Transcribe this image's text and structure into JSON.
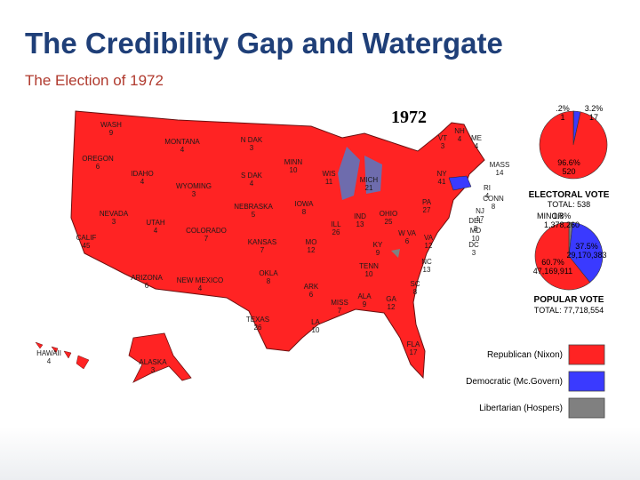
{
  "slide": {
    "title": "The Credibility Gap and Watergate",
    "subtitle": "The Election of 1972"
  },
  "map": {
    "year": "1972",
    "states": [
      {
        "name": "WASH",
        "votes": 9
      },
      {
        "name": "OREGON",
        "votes": 6
      },
      {
        "name": "CALIF",
        "votes": 45
      },
      {
        "name": "IDAHO",
        "votes": 4
      },
      {
        "name": "NEVADA",
        "votes": 3
      },
      {
        "name": "MONTANA",
        "votes": 4
      },
      {
        "name": "WYOMING",
        "votes": 3
      },
      {
        "name": "UTAH",
        "votes": 4
      },
      {
        "name": "ARIZONA",
        "votes": 6
      },
      {
        "name": "COLORADO",
        "votes": 7
      },
      {
        "name": "NEW MEXICO",
        "votes": 4
      },
      {
        "name": "N DAK",
        "votes": 3
      },
      {
        "name": "S DAK",
        "votes": 4
      },
      {
        "name": "NEBRASKA",
        "votes": 5
      },
      {
        "name": "KANSAS",
        "votes": 7
      },
      {
        "name": "OKLA",
        "votes": 8
      },
      {
        "name": "TEXAS",
        "votes": 26
      },
      {
        "name": "MINN",
        "votes": 10
      },
      {
        "name": "IOWA",
        "votes": 8
      },
      {
        "name": "MO",
        "votes": 12
      },
      {
        "name": "ARK",
        "votes": 6
      },
      {
        "name": "LA",
        "votes": 10
      },
      {
        "name": "WIS",
        "votes": 11
      },
      {
        "name": "ILL",
        "votes": 26
      },
      {
        "name": "MISS",
        "votes": 7
      },
      {
        "name": "MICH",
        "votes": 21
      },
      {
        "name": "IND",
        "votes": 13
      },
      {
        "name": "KY",
        "votes": 9
      },
      {
        "name": "TENN",
        "votes": 10
      },
      {
        "name": "ALA",
        "votes": 9
      },
      {
        "name": "OHIO",
        "votes": 25
      },
      {
        "name": "GA",
        "votes": 12
      },
      {
        "name": "FLA",
        "votes": 17
      },
      {
        "name": "SC",
        "votes": 8
      },
      {
        "name": "NC",
        "votes": 13
      },
      {
        "name": "VA",
        "votes": 12
      },
      {
        "name": "W VA",
        "votes": 6
      },
      {
        "name": "PA",
        "votes": 27
      },
      {
        "name": "NY",
        "votes": 41
      },
      {
        "name": "VT",
        "votes": 3
      },
      {
        "name": "NH",
        "votes": 4
      },
      {
        "name": "ME",
        "votes": 4
      },
      {
        "name": "MASS",
        "votes": 14
      },
      {
        "name": "RI",
        "votes": 4
      },
      {
        "name": "CONN",
        "votes": 8
      },
      {
        "name": "NJ",
        "votes": 17
      },
      {
        "name": "DEL",
        "votes": 3
      },
      {
        "name": "MD",
        "votes": 10
      },
      {
        "name": "DC",
        "votes": 3
      },
      {
        "name": "HAWAII",
        "votes": 4
      },
      {
        "name": "ALASKA",
        "votes": 3
      }
    ],
    "electoral": {
      "heading": "ELECTORAL VOTE",
      "total": "TOTAL: 538",
      "slices": [
        {
          "percent": 96.6,
          "percent_label": "96.6%",
          "count": "520",
          "color": "#ff2323"
        },
        {
          "percent": 3.2,
          "percent_label": "3.2%",
          "count": "17",
          "color": "#3a3aff"
        },
        {
          "percent": 0.2,
          "percent_label": ".2%",
          "count": "1",
          "color": "#808080"
        }
      ]
    },
    "popular": {
      "heading": "POPULAR VOTE",
      "total": "TOTAL: 77,718,554",
      "slices": [
        {
          "percent": 60.7,
          "percent_label": "60.7%",
          "count": "47,169,911",
          "color": "#ff2323"
        },
        {
          "percent": 37.5,
          "percent_label": "37.5%",
          "count": "29,170,383",
          "color": "#3a3aff"
        },
        {
          "name": "MINOR",
          "percent": 1.8,
          "percent_label": "1.8%",
          "count": "1,378,260",
          "color": "#808080"
        }
      ]
    },
    "legend": [
      {
        "label": "Republican (Nixon)",
        "color": "#ff2323"
      },
      {
        "label": "Democratic (Mc.Govern)",
        "color": "#3a3aff"
      },
      {
        "label": "Libertarian (Hospers)",
        "color": "#808080"
      }
    ]
  }
}
